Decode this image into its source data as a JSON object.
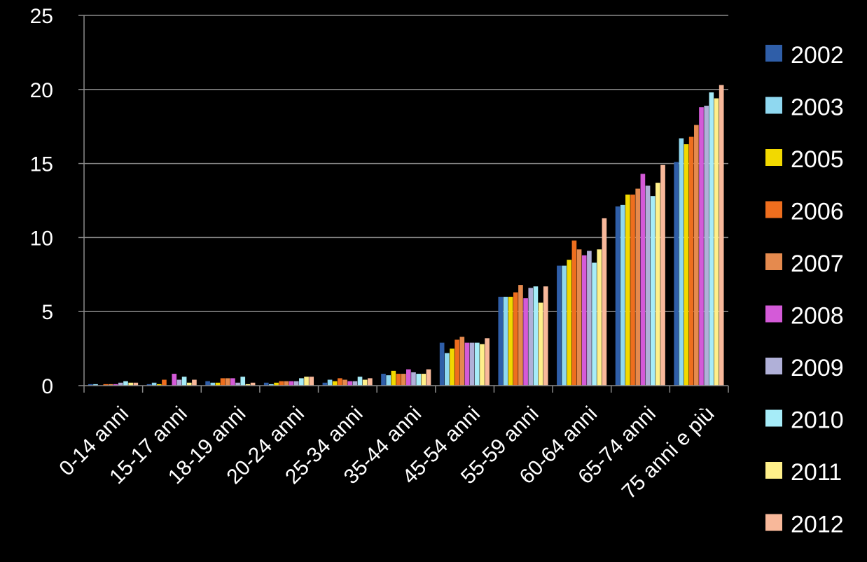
{
  "chart_data": {
    "type": "bar",
    "categories": [
      "0-14 anni",
      "15-17 anni",
      "18-19 anni",
      "20-24 anni",
      "25-34 anni",
      "35-44 anni",
      "45-54 anni",
      "55-59 anni",
      "60-64 anni",
      "65-74 anni",
      "75 anni e più"
    ],
    "ylim": [
      0,
      25
    ],
    "yticks": [
      0,
      5,
      10,
      15,
      20,
      25
    ],
    "grid": true,
    "legend_position": "right",
    "title": "",
    "xlabel": "",
    "ylabel": "",
    "series": [
      {
        "name": "2002",
        "color": "#2f5ea8",
        "values": [
          0.1,
          0.1,
          0.3,
          0.2,
          0.2,
          0.8,
          2.9,
          6.0,
          8.1,
          12.1,
          15.1
        ]
      },
      {
        "name": "2003",
        "color": "#8fd8f0",
        "values": [
          0.1,
          0.2,
          0.2,
          0.1,
          0.4,
          0.7,
          2.2,
          6.0,
          8.1,
          12.2,
          16.7
        ]
      },
      {
        "name": "2005",
        "color": "#f2d900",
        "values": [
          0.0,
          0.1,
          0.2,
          0.2,
          0.3,
          1.0,
          2.5,
          6.0,
          8.5,
          12.9,
          16.3
        ]
      },
      {
        "name": "2006",
        "color": "#ee6e1e",
        "values": [
          0.1,
          0.4,
          0.5,
          0.3,
          0.5,
          0.8,
          3.1,
          6.3,
          9.8,
          12.9,
          16.8
        ]
      },
      {
        "name": "2007",
        "color": "#e58a4e",
        "values": [
          0.1,
          0.0,
          0.5,
          0.3,
          0.4,
          0.8,
          3.3,
          6.8,
          9.2,
          13.3,
          17.6
        ]
      },
      {
        "name": "2008",
        "color": "#d45ad8",
        "values": [
          0.1,
          0.8,
          0.5,
          0.3,
          0.3,
          1.1,
          2.9,
          5.9,
          8.8,
          14.3,
          18.8
        ]
      },
      {
        "name": "2009",
        "color": "#b0b0d8",
        "values": [
          0.2,
          0.4,
          0.2,
          0.3,
          0.3,
          0.9,
          2.9,
          6.6,
          9.1,
          13.5,
          18.9
        ]
      },
      {
        "name": "2010",
        "color": "#a6ecf8",
        "values": [
          0.3,
          0.6,
          0.6,
          0.5,
          0.6,
          0.8,
          2.9,
          6.7,
          8.3,
          12.8,
          19.8
        ]
      },
      {
        "name": "2011",
        "color": "#fff08a",
        "values": [
          0.2,
          0.2,
          0.1,
          0.6,
          0.4,
          0.8,
          2.8,
          5.6,
          9.2,
          13.7,
          19.4
        ]
      },
      {
        "name": "2012",
        "color": "#f8b89a",
        "values": [
          0.2,
          0.4,
          0.2,
          0.6,
          0.5,
          1.1,
          3.2,
          6.7,
          11.3,
          14.9,
          20.3
        ]
      }
    ]
  }
}
